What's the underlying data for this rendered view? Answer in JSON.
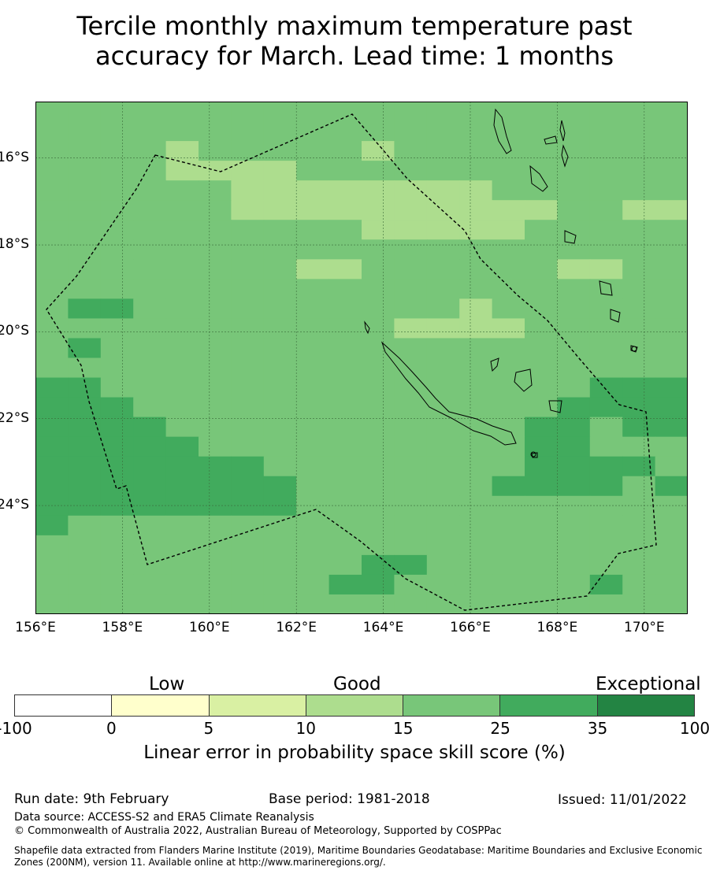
{
  "title": {
    "line1": "Tercile monthly maximum temperature past",
    "line2": "accuracy for March. Lead time: 1 months"
  },
  "map": {
    "lat_ticks": [
      "16°S",
      "18°S",
      "20°S",
      "22°S",
      "24°S"
    ],
    "lon_ticks": [
      "156°E",
      "158°E",
      "160°E",
      "162°E",
      "164°E",
      "166°E",
      "168°E",
      "170°E"
    ],
    "lon_range": [
      156,
      171
    ],
    "lat_range": [
      -26.5,
      -14.7
    ],
    "grid_resolution_deg": 0.83,
    "class_colors": [
      "#ffffff",
      "#ffffcc",
      "#d9f0a3",
      "#addd8e",
      "#78c679",
      "#41ab5d",
      "#238443"
    ],
    "grid_rows_north_to_south": [
      "44444444444444444444",
      "44444444444444444444",
      "44443444443444444444",
      "44443333444444444444",
      "44444433333333444444",
      "44444433333333334433",
      "44444444443333344444",
      "44444444444444444444",
      "44444444334444443344",
      "44444444444444444444",
      "45544444444443444444",
      "44444444444333344444",
      "45444444444444444444",
      "44444444444444444444",
      "55444444444444444555",
      "55544444444444445555",
      "55554444444444455455",
      "55555444444444455444",
      "55555554444444455554",
      "55555555444444555545",
      "55555555444444444444",
      "54444444444444444444",
      "44444444444444444444",
      "44444444445544444444",
      "44444444455444444544",
      "44444444444444444444"
    ]
  },
  "colorbar": {
    "category_labels": [
      "Low",
      "Good",
      "Exceptional"
    ],
    "ticks": [
      "-100",
      "0",
      "5",
      "10",
      "15",
      "25",
      "35",
      "100"
    ],
    "colors": [
      "#ffffff",
      "#ffffcc",
      "#d9f0a3",
      "#addd8e",
      "#78c679",
      "#41ab5d",
      "#238443"
    ],
    "label": "Linear error in probability space skill score (%)"
  },
  "footer": {
    "run_date": "Run date: 9th February",
    "base_period": "Base period: 1981-2018",
    "issued": "Issued: 11/01/2022",
    "data_source": "Data source: ACCESS-S2 and ERA5 Climate Reanalysis",
    "copyright": "© Commonwealth of Australia 2022, Australian Bureau of Meteorology, Supported by COSPPac",
    "shapefile": "Shapefile data extracted from Flanders Marine Institute (2019), Maritime Boundaries Geodatabase: Maritime Boundaries and Exclusive Economic Zones (200NM), version 11. Available online at http://www.marineregions.org/."
  }
}
